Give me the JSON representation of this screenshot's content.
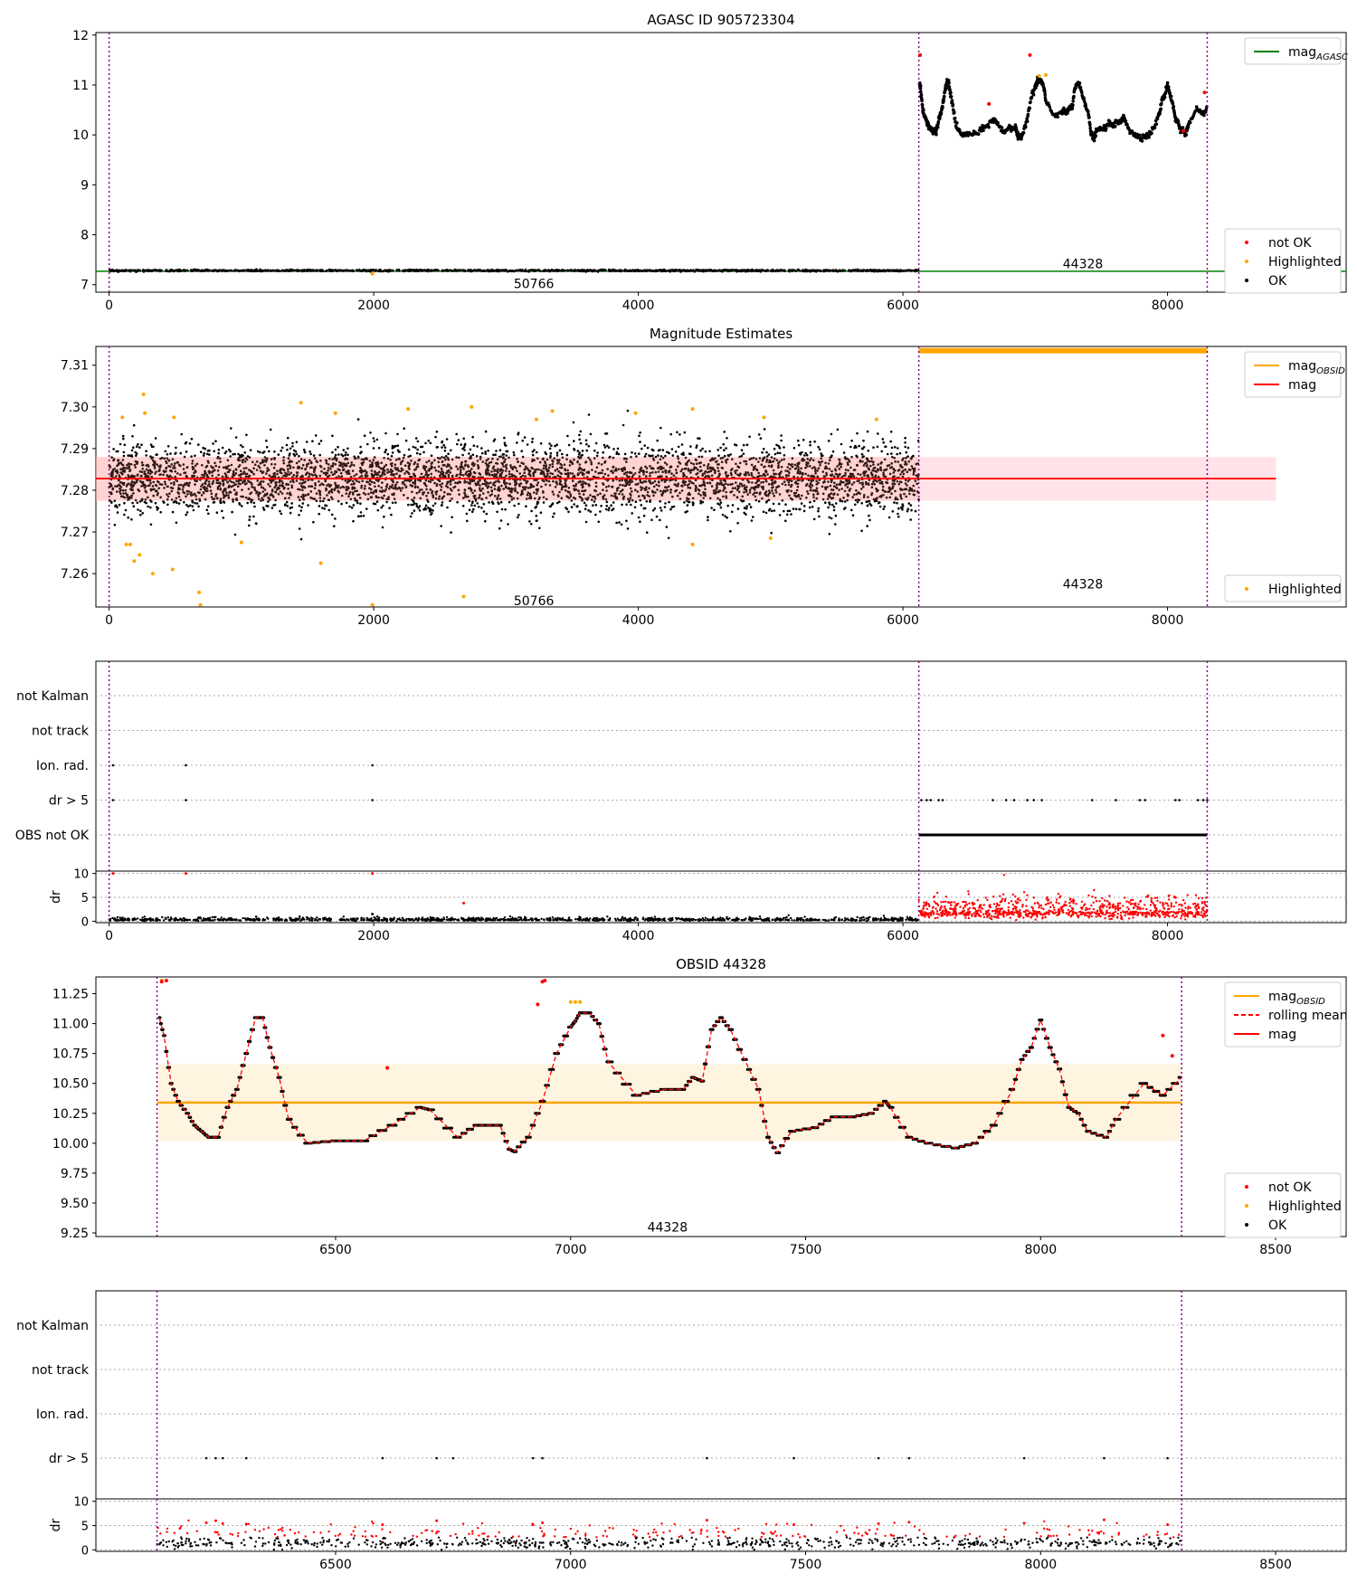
{
  "chart_data": [
    {
      "type": "scatter",
      "title": "AGASC ID 905723304",
      "xlim": [
        -100,
        9350
      ],
      "ylim": [
        6.85,
        12.05
      ],
      "xticks": [
        0,
        2000,
        4000,
        6000,
        8000
      ],
      "yticks": [
        7,
        8,
        9,
        10,
        11,
        12
      ],
      "obs_lines": [
        0,
        6120,
        8300
      ],
      "obsid_labels": [
        {
          "text": "50766",
          "x": 3060,
          "y": 7.02
        },
        {
          "text": "44328",
          "x": 7210,
          "y": 7.42
        }
      ],
      "mag_agasc": 7.27,
      "legend_top": [
        {
          "label": "mag",
          "sub": "AGASC",
          "style": "line",
          "color": "#008000"
        }
      ],
      "legend_bottom": [
        {
          "label": "not OK",
          "style": "dot",
          "color": "#ff0000"
        },
        {
          "label": "Highlighted",
          "style": "dot",
          "color": "#ffa500"
        },
        {
          "label": "OK",
          "style": "dot",
          "color": "#000000"
        }
      ],
      "segments": [
        {
          "x0": 0,
          "x1": 6120,
          "mag": 7.283,
          "spread": 0.02
        },
        {
          "x0": 6120,
          "x1": 8300,
          "mag": 10.35,
          "spread": 0.05
        }
      ],
      "highlighted_points": [
        [
          1990,
          7.22
        ],
        [
          6130,
          11.6
        ],
        [
          7030,
          11.18
        ],
        [
          7080,
          11.2
        ]
      ],
      "not_ok_points": [
        [
          6130,
          11.6
        ],
        [
          6960,
          11.6
        ],
        [
          6650,
          10.62
        ],
        [
          8120,
          10.08
        ],
        [
          8280,
          10.85
        ]
      ]
    },
    {
      "type": "scatter",
      "title": "Magnitude Estimates",
      "xlim": [
        -100,
        9350
      ],
      "ylim": [
        7.252,
        7.3145
      ],
      "xticks": [
        0,
        2000,
        4000,
        6000,
        8000
      ],
      "yticks": [
        7.26,
        7.27,
        7.28,
        7.29,
        7.3,
        7.31
      ],
      "ytick_labels": [
        "7.26",
        "7.27",
        "7.28",
        "7.29",
        "7.30",
        "7.31"
      ],
      "obs_lines": [
        0,
        6120,
        8300
      ],
      "obsid_labels": [
        {
          "text": "50766",
          "x": 3060,
          "y": 7.2535
        },
        {
          "text": "44328",
          "x": 7210,
          "y": 7.2575
        }
      ],
      "mag": 7.2828,
      "mag_band": [
        7.2775,
        7.288
      ],
      "mag_obsid": {
        "x0": 6120,
        "x1": 8300,
        "y": 7.3135
      },
      "legend_top": [
        {
          "label": "mag",
          "sub": "OBSID",
          "style": "line",
          "color": "#ffa500"
        },
        {
          "label": "mag",
          "sub": "",
          "style": "line",
          "color": "#ff0000"
        }
      ],
      "legend_bottom": [
        {
          "label": "Highlighted",
          "style": "dot",
          "color": "#ffa500"
        }
      ],
      "highlighted_points": [
        [
          100,
          7.2975
        ],
        [
          130,
          7.267
        ],
        [
          160,
          7.267
        ],
        [
          190,
          7.263
        ],
        [
          230,
          7.2645
        ],
        [
          260,
          7.303
        ],
        [
          270,
          7.2985
        ],
        [
          330,
          7.26
        ],
        [
          480,
          7.261
        ],
        [
          490,
          7.2975
        ],
        [
          680,
          7.2555
        ],
        [
          690,
          7.2525
        ],
        [
          1000,
          7.2675
        ],
        [
          1450,
          7.301
        ],
        [
          1600,
          7.2625
        ],
        [
          1710,
          7.2985
        ],
        [
          1990,
          7.2525
        ],
        [
          2260,
          7.2995
        ],
        [
          2680,
          7.2545
        ],
        [
          2740,
          7.3
        ],
        [
          3230,
          7.297
        ],
        [
          3350,
          7.299
        ],
        [
          3980,
          7.2985
        ],
        [
          4410,
          7.2995
        ],
        [
          4410,
          7.267
        ],
        [
          4950,
          7.2975
        ],
        [
          5000,
          7.2685
        ],
        [
          5800,
          7.297
        ]
      ]
    },
    {
      "type": "scatter",
      "title": "",
      "xlim": [
        -100,
        9350
      ],
      "xticks": [
        0,
        2000,
        4000,
        6000,
        8000
      ],
      "obs_lines": [
        0,
        6120,
        8300
      ],
      "flag_rows": [
        "not Kalman",
        "not track",
        "Ion. rad.",
        "dr > 5",
        "OBS not OK"
      ],
      "flag_points": {
        "Ion. rad.": [
          30,
          580,
          1990
        ],
        "dr > 5": [
          30,
          580,
          1990,
          6140,
          6180,
          6210,
          6270,
          6300,
          6680,
          6780,
          6840,
          6940,
          6990,
          7050,
          7430,
          7610,
          7790,
          7830,
          8060,
          8090,
          8230,
          8270,
          8300
        ],
        "OBS not OK": [
          6120,
          8300
        ]
      },
      "dr_ylabel": "dr",
      "dr_ylim": [
        -0.3,
        10.5
      ],
      "dr_yticks": [
        0,
        5,
        10
      ],
      "dr_segments": [
        {
          "x0": 0,
          "x1": 6120,
          "mean": 0.3,
          "spread": 0.25
        },
        {
          "x0": 6120,
          "x1": 8300,
          "mean": 2.0,
          "spread": 1.6
        }
      ],
      "dr_outliers": [
        [
          30,
          10.0
        ],
        [
          580,
          10.0
        ],
        [
          1990,
          10.0
        ],
        [
          2680,
          3.8
        ],
        [
          1990,
          1.5
        ]
      ]
    },
    {
      "type": "line",
      "title": "OBSID 44328",
      "xlim": [
        5990,
        8650
      ],
      "ylim": [
        9.22,
        11.39
      ],
      "xticks": [
        6500,
        7000,
        7500,
        8000,
        8500
      ],
      "yticks": [
        9.25,
        9.5,
        9.75,
        10.0,
        10.25,
        10.5,
        10.75,
        11.0,
        11.25
      ],
      "ytick_labels": [
        "9.25",
        "9.50",
        "9.75",
        "10.00",
        "10.25",
        "10.50",
        "10.75",
        "11.00",
        "11.25"
      ],
      "obs_lines": [
        6120,
        8300
      ],
      "obsid_labels": [
        {
          "text": "44328",
          "x": 7210,
          "y": 9.3
        }
      ],
      "mag_obsid": 10.34,
      "mag_band": [
        10.02,
        10.66
      ],
      "legend_top": [
        {
          "label": "mag",
          "sub": "OBSID",
          "style": "line",
          "color": "#ffa500"
        },
        {
          "label": "rolling mean",
          "sub": "",
          "style": "dash",
          "color": "#ff0000"
        },
        {
          "label": "mag",
          "sub": "",
          "style": "line",
          "color": "#ff0000"
        }
      ],
      "legend_bottom": [
        {
          "label": "not OK",
          "style": "dot",
          "color": "#ff0000"
        },
        {
          "label": "Highlighted",
          "style": "dot",
          "color": "#ffa500"
        },
        {
          "label": "OK",
          "style": "dot",
          "color": "#000000"
        }
      ],
      "series": [
        {
          "name": "rolling mean",
          "x": [
            6125,
            6135,
            6150,
            6165,
            6185,
            6200,
            6215,
            6230,
            6250,
            6270,
            6290,
            6310,
            6330,
            6345,
            6360,
            6380,
            6400,
            6440,
            6500,
            6560,
            6620,
            6680,
            6700,
            6760,
            6800,
            6820,
            6850,
            6870,
            6880,
            6910,
            6940,
            6970,
            7000,
            7010,
            7020,
            7040,
            7060,
            7080,
            7140,
            7200,
            7240,
            7260,
            7280,
            7300,
            7320,
            7340,
            7370,
            7400,
            7420,
            7440,
            7470,
            7520,
            7560,
            7600,
            7640,
            7670,
            7680,
            7720,
            7760,
            7820,
            7860,
            7900,
            7940,
            7960,
            7980,
            8000,
            8020,
            8040,
            8060,
            8080,
            8100,
            8140,
            8160,
            8220,
            8260,
            8300
          ],
          "y": [
            11.05,
            10.9,
            10.5,
            10.35,
            10.25,
            10.15,
            10.1,
            10.05,
            10.05,
            10.3,
            10.45,
            10.75,
            11.05,
            11.05,
            10.8,
            10.55,
            10.2,
            10.0,
            10.02,
            10.02,
            10.15,
            10.3,
            10.28,
            10.05,
            10.15,
            10.15,
            10.15,
            9.95,
            9.93,
            10.05,
            10.35,
            10.75,
            10.97,
            11.02,
            11.09,
            11.09,
            11.0,
            10.68,
            10.4,
            10.45,
            10.45,
            10.55,
            10.52,
            10.95,
            11.05,
            10.95,
            10.7,
            10.45,
            10.05,
            9.92,
            10.1,
            10.13,
            10.22,
            10.22,
            10.25,
            10.35,
            10.3,
            10.05,
            10.0,
            9.96,
            10.0,
            10.15,
            10.45,
            10.7,
            10.8,
            11.03,
            10.8,
            10.62,
            10.3,
            10.25,
            10.1,
            10.05,
            10.2,
            10.5,
            10.4,
            10.55
          ]
        }
      ],
      "not_ok_points": [
        [
          6130,
          11.35
        ],
        [
          6140,
          11.36
        ],
        [
          6610,
          10.63
        ],
        [
          6930,
          11.16
        ],
        [
          6940,
          11.35
        ],
        [
          6945,
          11.36
        ],
        [
          8260,
          10.9
        ],
        [
          8280,
          10.73
        ]
      ],
      "highlighted_points": [
        [
          7000,
          11.18
        ],
        [
          7010,
          11.18
        ],
        [
          7020,
          11.18
        ],
        [
          6130,
          11.36
        ]
      ]
    },
    {
      "type": "scatter",
      "title": "",
      "xlim": [
        5990,
        8650
      ],
      "xticks": [
        6500,
        7000,
        7500,
        8000,
        8500
      ],
      "obs_lines": [
        6120,
        8300
      ],
      "flag_rows": [
        "not Kalman",
        "not track",
        "Ion. rad.",
        "dr > 5"
      ],
      "flag_points": {
        "dr > 5": [
          6225,
          6245,
          6260,
          6310,
          6600,
          6715,
          6750,
          6920,
          6940,
          7290,
          7475,
          7655,
          7720,
          7965,
          8135,
          8270
        ]
      },
      "dr_ylabel": "dr",
      "dr_ylim": [
        -0.3,
        10.5
      ],
      "dr_yticks": [
        0,
        5,
        10
      ],
      "dr_segments": [
        {
          "x0": 6120,
          "x1": 8300,
          "mean": 1.6,
          "spread": 1.5
        }
      ],
      "dr_outliers": [
        [
          6225,
          5.6
        ],
        [
          6245,
          6.0
        ],
        [
          6260,
          5.4
        ],
        [
          6310,
          5.3
        ],
        [
          6600,
          5.2
        ],
        [
          6715,
          6.0
        ],
        [
          6920,
          5.2
        ],
        [
          6940,
          5.6
        ],
        [
          7290,
          6.1
        ],
        [
          7475,
          5.2
        ],
        [
          7655,
          5.4
        ],
        [
          7720,
          5.7
        ],
        [
          7965,
          5.5
        ],
        [
          8135,
          6.2
        ],
        [
          8270,
          5.2
        ]
      ]
    }
  ]
}
